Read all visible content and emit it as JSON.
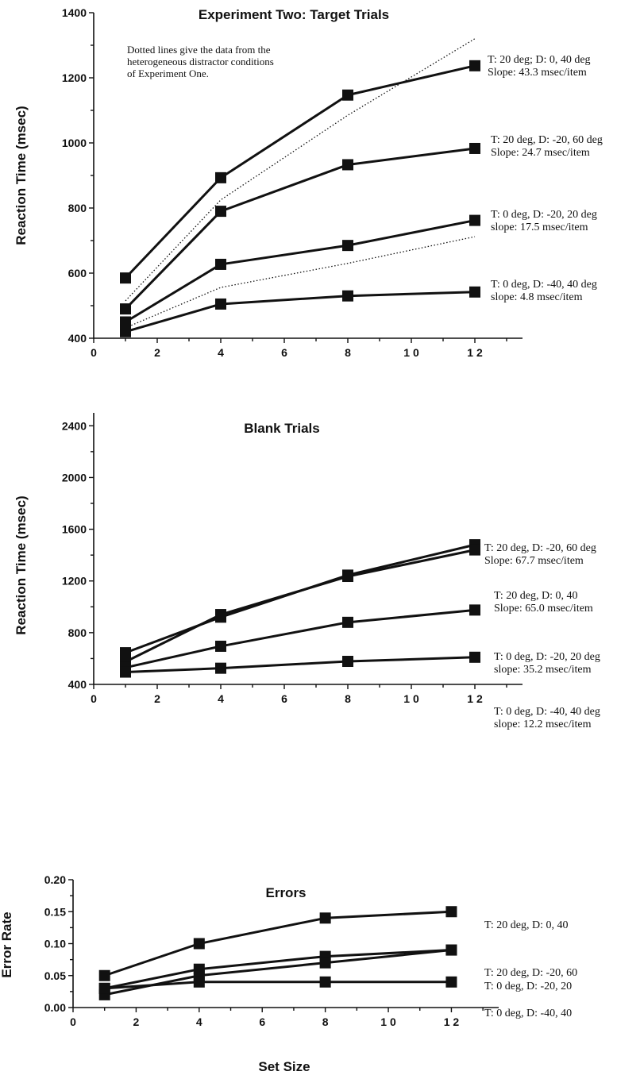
{
  "chart_data": [
    {
      "type": "line",
      "title": "Experiment Two: Target Trials",
      "xlabel": "",
      "ylabel": "Reaction Time (msec)",
      "xlim": [
        0,
        13.5
      ],
      "ylim": [
        400,
        1400
      ],
      "xticks": [
        0,
        2,
        4,
        6,
        8,
        10,
        12
      ],
      "xtick_labels": [
        "0",
        "2",
        "4",
        "6",
        "8",
        "1 0",
        "1 2"
      ],
      "yticks": [
        400,
        600,
        800,
        1000,
        1200,
        1400
      ],
      "ytick_labels": [
        "400",
        "600",
        "800",
        "1000",
        "1200",
        "1400"
      ],
      "x": [
        1,
        4,
        8,
        12
      ],
      "note": [
        "Dotted lines give the data from the",
        "heterogeneous distractor conditions",
        "of Experiment One."
      ],
      "series": [
        {
          "labels": [
            "T: 20 deg; D: 0, 40 deg",
            "Slope: 43.3 msec/item"
          ],
          "values": [
            585,
            893,
            1147,
            1237
          ]
        },
        {
          "labels": [
            "T: 20 deg, D: -20, 60 deg",
            "Slope: 24.7 msec/item"
          ],
          "values": [
            490,
            790,
            933,
            983
          ]
        },
        {
          "labels": [
            "T: 0 deg, D: -20, 20 deg",
            "slope: 17.5 msec/item"
          ],
          "values": [
            450,
            627,
            685,
            762
          ]
        },
        {
          "labels": [
            "T: 0 deg, D: -40, 40 deg",
            "slope: 4.8 msec/item"
          ],
          "values": [
            420,
            505,
            530,
            542
          ]
        }
      ],
      "dotted_series": [
        {
          "values": [
            515,
            825,
            1085,
            1320
          ]
        },
        {
          "values": [
            432,
            556,
            630,
            712
          ]
        }
      ]
    },
    {
      "type": "line",
      "title": "Blank Trials",
      "xlabel": "",
      "ylabel": "Reaction Time (msec)",
      "xlim": [
        0,
        13.5
      ],
      "ylim": [
        400,
        2500
      ],
      "xticks": [
        0,
        2,
        4,
        6,
        8,
        10,
        12
      ],
      "xtick_labels": [
        "0",
        "2",
        "4",
        "6",
        "8",
        "1 0",
        "1 2"
      ],
      "yticks": [
        400,
        800,
        1200,
        1600,
        2000,
        2400
      ],
      "ytick_labels": [
        "400",
        "800",
        "1200",
        "1600",
        "2000",
        "2400"
      ],
      "x": [
        1,
        4,
        8,
        12
      ],
      "series": [
        {
          "labels": [
            "T: 20 deg, D: -20, 60 deg",
            "Slope: 67.7 msec/item"
          ],
          "values": [
            645,
            920,
            1245,
            1480
          ]
        },
        {
          "labels": [
            "T: 20 deg, D: 0, 40",
            "Slope: 65.0 msec/item"
          ],
          "values": [
            575,
            940,
            1235,
            1440
          ]
        },
        {
          "labels": [
            "T: 0 deg, D: -20, 20 deg",
            "slope: 35.2 msec/item"
          ],
          "values": [
            530,
            695,
            880,
            975
          ]
        },
        {
          "labels": [
            "T: 0 deg, D: -40, 40 deg",
            "slope: 12.2 msec/item"
          ],
          "values": [
            495,
            525,
            578,
            610
          ]
        }
      ]
    },
    {
      "type": "line",
      "title": "Errors",
      "xlabel": "Set Size",
      "ylabel": "Error Rate",
      "xlim": [
        0,
        13.5
      ],
      "ylim": [
        0,
        0.2
      ],
      "xticks": [
        0,
        2,
        4,
        6,
        8,
        10,
        12
      ],
      "xtick_labels": [
        "0",
        "2",
        "4",
        "6",
        "8",
        "1 0",
        "1 2"
      ],
      "yticks": [
        0,
        0.05,
        0.1,
        0.15,
        0.2
      ],
      "ytick_labels": [
        "0.00",
        "0.05",
        "0.10",
        "0.15",
        "0.20"
      ],
      "x": [
        1,
        4,
        8,
        12
      ],
      "series": [
        {
          "labels": [
            "T: 20 deg, D: 0, 40"
          ],
          "values": [
            0.05,
            0.1,
            0.14,
            0.15
          ]
        },
        {
          "labels": [
            "T: 20 deg, D: -20, 60"
          ],
          "values": [
            0.03,
            0.06,
            0.08,
            0.09
          ]
        },
        {
          "labels": [
            "T: 0 deg, D: -20, 20"
          ],
          "values": [
            0.02,
            0.05,
            0.07,
            0.09
          ]
        },
        {
          "labels": [
            "T: 0 deg, D: -40, 40"
          ],
          "values": [
            0.03,
            0.04,
            0.04,
            0.04
          ]
        }
      ]
    }
  ]
}
